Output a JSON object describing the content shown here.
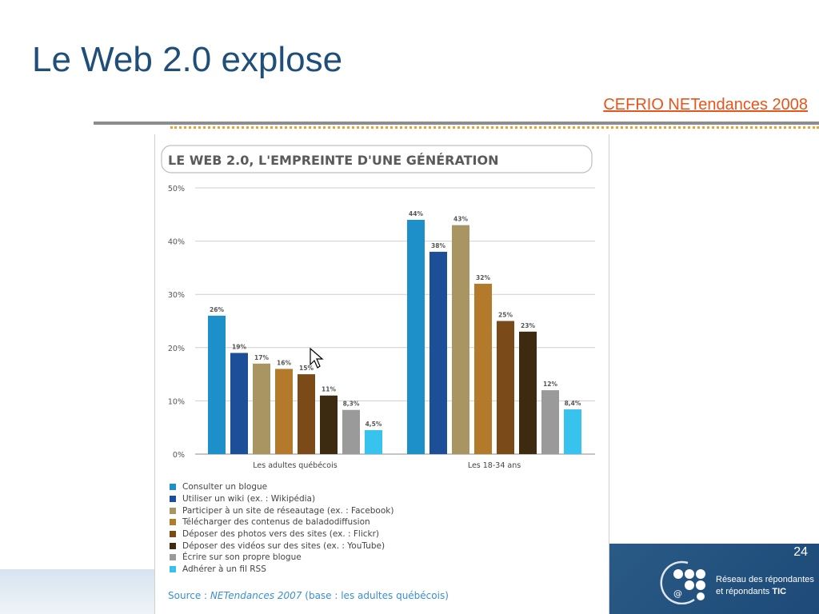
{
  "slide": {
    "title": "Le Web 2.0 explose",
    "source_link": "CEFRIO NETendances 2008",
    "page_number": "24",
    "logo_line1": "Réseau des répondantes",
    "logo_line2": "et répondants",
    "logo_line2_bold": "TIC",
    "logo_at": "@"
  },
  "colors": {
    "title": "#1f4e79",
    "link": "#e8541a",
    "footer_panel": "#2a5a86"
  },
  "chart_data": {
    "type": "bar",
    "title": "LE WEB 2.0, L'EMPREINTE D'UNE GÉNÉRATION",
    "categories": [
      "Les adultes québécois",
      "Les 18-34 ans"
    ],
    "yticks": [
      "0%",
      "10%",
      "20%",
      "30%",
      "40%",
      "50%"
    ],
    "ylim": [
      0,
      50
    ],
    "grid": true,
    "legend_position": "bottom",
    "series": [
      {
        "name": "Consulter un blogue",
        "color": "#1d8fc9",
        "values": [
          26,
          44
        ],
        "labels": [
          "26%",
          "44%"
        ]
      },
      {
        "name": "Utiliser un wiki (ex. : Wikipédia)",
        "color": "#1c4f97",
        "values": [
          19,
          38
        ],
        "labels": [
          "19%",
          "38%"
        ]
      },
      {
        "name": "Participer à un site de réseautage (ex. : Facebook)",
        "color": "#a89561",
        "values": [
          17,
          43
        ],
        "labels": [
          "17%",
          "43%"
        ]
      },
      {
        "name": "Télécharger des contenus de baladodiffusion",
        "color": "#b27a2a",
        "values": [
          16,
          32
        ],
        "labels": [
          "16%",
          "32%"
        ]
      },
      {
        "name": "Déposer des photos vers des sites (ex. : Flickr)",
        "color": "#7a4a18",
        "values": [
          15,
          25
        ],
        "labels": [
          "15%",
          "25%"
        ]
      },
      {
        "name": "Déposer des vidéos sur des sites (ex. : YouTube)",
        "color": "#3d2a10",
        "values": [
          11,
          23
        ],
        "labels": [
          "11%",
          "23%"
        ]
      },
      {
        "name": "Écrire sur son propre blogue",
        "color": "#9a9a9a",
        "values": [
          8.3,
          12
        ],
        "labels": [
          "8,3%",
          "12%"
        ]
      },
      {
        "name": "Adhérer à un fil RSS",
        "color": "#38c2ee",
        "values": [
          4.5,
          8.4
        ],
        "labels": [
          "4,5%",
          "8,4%"
        ]
      }
    ],
    "source_prefix": "Source : ",
    "source_italic": "NETendances 2007",
    "source_suffix": " (base : les adultes québécois)"
  }
}
